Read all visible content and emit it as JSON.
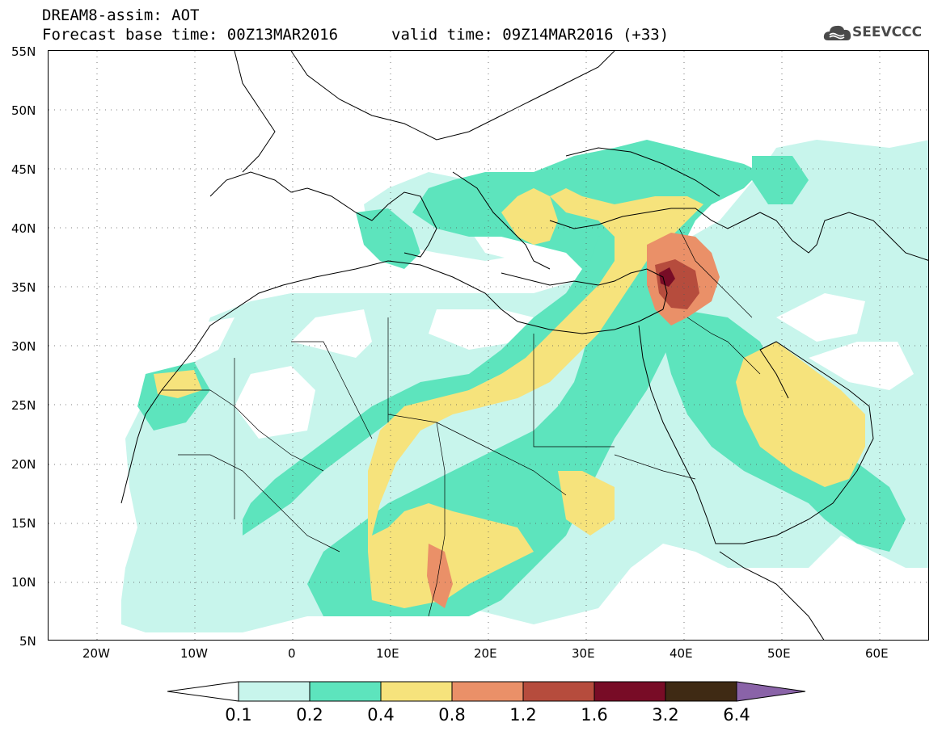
{
  "header": {
    "model_line": "DREAM8-assim: AOT",
    "base_time_line": "Forecast base time: 00Z13MAR2016",
    "valid_time_line": "valid time: 09Z14MAR2016 (+33)"
  },
  "logo": {
    "text": "SEEVCCC",
    "icon": "cloud-icon"
  },
  "map": {
    "projection": "lat-lon",
    "lon_range": [
      -25,
      65
    ],
    "lat_range": [
      5,
      55
    ],
    "lat_labels": [
      "55N",
      "50N",
      "45N",
      "40N",
      "35N",
      "30N",
      "25N",
      "20N",
      "15N",
      "10N",
      "5N"
    ],
    "lon_labels": [
      "20W",
      "10W",
      "0",
      "10E",
      "20E",
      "30E",
      "40E",
      "50E",
      "60E"
    ],
    "gridlines": "dotted",
    "variable": "Aerosol Optical Thickness"
  },
  "legend": {
    "levels": [
      "0.1",
      "0.2",
      "0.4",
      "0.8",
      "1.2",
      "1.6",
      "3.2",
      "6.4"
    ],
    "colors": [
      "#ffffff",
      "#c8f5ec",
      "#5de4bd",
      "#f6e37c",
      "#ea9068",
      "#b64c3d",
      "#780c26",
      "#3f2a14",
      "#8a63a8"
    ]
  }
}
